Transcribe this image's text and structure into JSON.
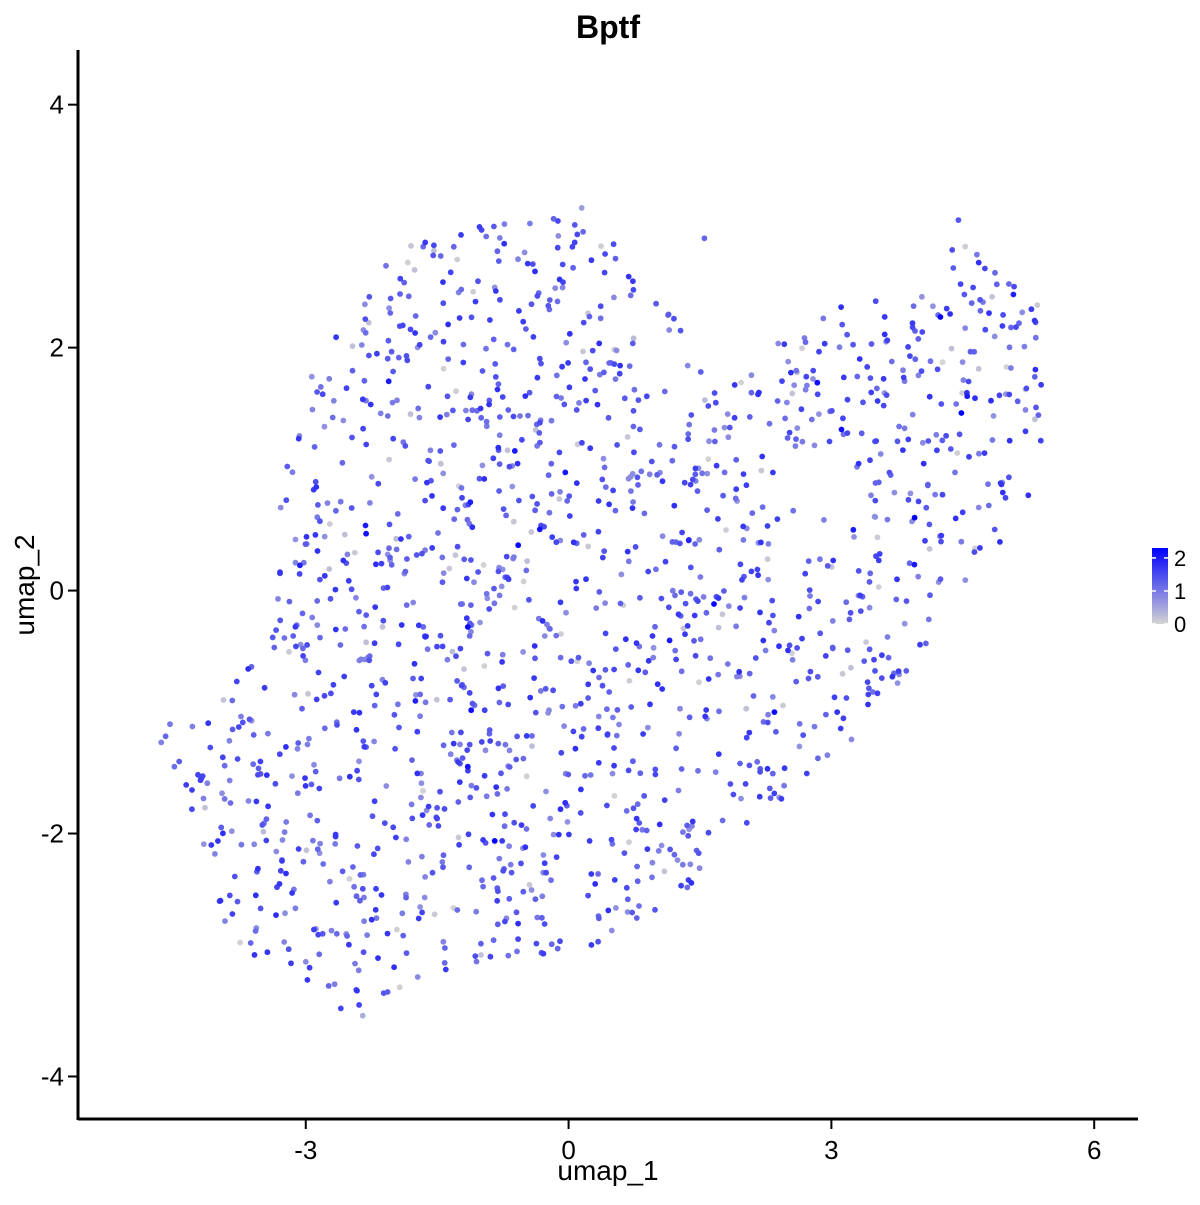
{
  "chart_data": {
    "type": "scatter",
    "title": "Bptf",
    "xlabel": "umap_1",
    "ylabel": "umap_2",
    "xlim": [
      -5.6,
      6.5
    ],
    "ylim": [
      -4.35,
      4.45
    ],
    "x_ticks": [
      -3,
      0,
      3,
      6
    ],
    "x_tick_labels": [
      "-3",
      "0",
      "3",
      "6"
    ],
    "y_ticks": [
      -4,
      -2,
      0,
      2,
      4
    ],
    "y_tick_labels": [
      "-4",
      "-2",
      "0",
      "2",
      "4"
    ],
    "grid": false,
    "point_count_approx": 1600,
    "color_scale": {
      "low_color": "#d3d3d3",
      "high_color": "#0000ff",
      "min": 0,
      "max": 2.3,
      "legend_ticks": [
        0,
        1,
        2
      ],
      "legend_tick_labels": [
        "0",
        "1",
        "2"
      ],
      "legend_position": "right"
    },
    "region_outline": [
      [
        -4.6,
        -1.2
      ],
      [
        -4.3,
        -1.75
      ],
      [
        -4.15,
        -2.2
      ],
      [
        -4.0,
        -2.8
      ],
      [
        -3.7,
        -3.0
      ],
      [
        -3.3,
        -3.2
      ],
      [
        -2.85,
        -3.3
      ],
      [
        -2.5,
        -3.5
      ],
      [
        -2.2,
        -3.4
      ],
      [
        -1.8,
        -3.25
      ],
      [
        -1.3,
        -3.2
      ],
      [
        -0.8,
        -3.05
      ],
      [
        -0.3,
        -3.05
      ],
      [
        0.2,
        -3.0
      ],
      [
        0.6,
        -2.95
      ],
      [
        1.0,
        -2.75
      ],
      [
        1.4,
        -2.45
      ],
      [
        1.8,
        -2.15
      ],
      [
        2.3,
        -1.8
      ],
      [
        2.8,
        -1.55
      ],
      [
        3.2,
        -1.25
      ],
      [
        3.6,
        -0.95
      ],
      [
        4.0,
        -0.5
      ],
      [
        4.45,
        -0.15
      ],
      [
        4.9,
        0.25
      ],
      [
        5.25,
        0.65
      ],
      [
        5.4,
        1.2
      ],
      [
        5.4,
        1.8
      ],
      [
        5.35,
        2.35
      ],
      [
        5.05,
        2.6
      ],
      [
        4.55,
        2.95
      ],
      [
        4.3,
        2.75
      ],
      [
        3.9,
        2.4
      ],
      [
        3.4,
        2.45
      ],
      [
        2.8,
        2.25
      ],
      [
        2.2,
        1.95
      ],
      [
        1.7,
        1.75
      ],
      [
        1.4,
        2.05
      ],
      [
        1.0,
        2.45
      ],
      [
        0.6,
        2.85
      ],
      [
        0.2,
        3.1
      ],
      [
        -0.4,
        3.05
      ],
      [
        -1.3,
        3.05
      ],
      [
        -1.9,
        2.85
      ],
      [
        -2.4,
        2.45
      ],
      [
        -2.8,
        2.15
      ],
      [
        -3.05,
        1.65
      ],
      [
        -3.25,
        0.9
      ],
      [
        -3.4,
        0.2
      ],
      [
        -3.6,
        -0.35
      ],
      [
        -3.9,
        -0.75
      ],
      [
        -4.3,
        -1.05
      ]
    ],
    "hole_outline": [
      [
        2.15,
        0.75
      ],
      [
        2.45,
        0.55
      ],
      [
        2.9,
        0.35
      ],
      [
        3.3,
        0.5
      ],
      [
        3.45,
        0.9
      ],
      [
        3.15,
        1.05
      ],
      [
        2.75,
        1.05
      ],
      [
        2.35,
        0.95
      ]
    ],
    "outlier_points": [
      {
        "x": -4.6,
        "y": -1.2,
        "v": 1.2
      },
      {
        "x": -4.65,
        "y": -1.25,
        "v": 0.9
      },
      {
        "x": -4.55,
        "y": -1.1,
        "v": 1.0
      },
      {
        "x": -4.5,
        "y": -1.45,
        "v": 1.1
      },
      {
        "x": -4.3,
        "y": -1.8,
        "v": 1.5
      },
      {
        "x": 4.45,
        "y": 3.05,
        "v": 1.4
      },
      {
        "x": 0.15,
        "y": 3.15,
        "v": 0.6
      },
      {
        "x": 1.55,
        "y": 2.9,
        "v": 1.2
      },
      {
        "x": 3.95,
        "y": 0.6,
        "v": 2.3
      },
      {
        "x": 3.25,
        "y": 0.5,
        "v": 2.0
      },
      {
        "x": 2.35,
        "y": -1.0,
        "v": 2.2
      },
      {
        "x": -1.15,
        "y": -0.3,
        "v": 2.2
      },
      {
        "x": -1.15,
        "y": -1.45,
        "v": 2.1
      },
      {
        "x": 4.55,
        "y": 1.6,
        "v": 2.0
      },
      {
        "x": -1.0,
        "y": -3.0,
        "v": 0.2
      },
      {
        "x": -2.35,
        "y": -3.5,
        "v": 0.4
      },
      {
        "x": 5.35,
        "y": 2.35,
        "v": 0.1
      }
    ]
  }
}
